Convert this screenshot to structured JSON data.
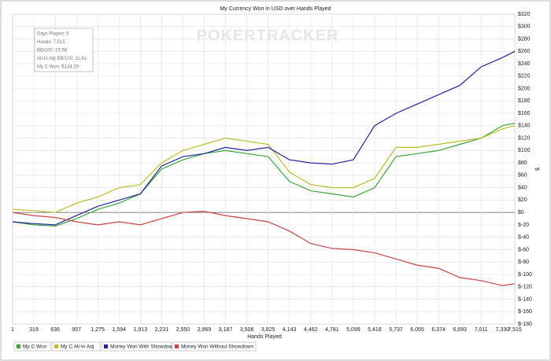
{
  "chart_data": {
    "type": "line",
    "title": "My Currency Won in USD over Hands Played",
    "watermark": "POKERTRACKER",
    "x_label": "Hands Played",
    "y_label": "$",
    "info": [
      "Days Played: 5",
      "Hands: 7,515",
      "BB/100: 15.56",
      "All-In Adj BB/100: 11.61",
      "My C Won: $144.29"
    ],
    "x": [
      1,
      319,
      638,
      957,
      1275,
      1594,
      1913,
      2231,
      2550,
      2869,
      3187,
      3506,
      3825,
      4143,
      4462,
      4781,
      5099,
      5418,
      5737,
      6055,
      6374,
      6693,
      7011,
      7330,
      7515
    ],
    "series": [
      {
        "name": "My C Won",
        "color": "#3aa63a",
        "values": [
          -15,
          -20,
          -22,
          -10,
          5,
          15,
          30,
          70,
          85,
          95,
          100,
          95,
          90,
          50,
          35,
          30,
          25,
          40,
          90,
          95,
          100,
          110,
          120,
          140,
          144
        ]
      },
      {
        "name": "My C All-In Adj",
        "color": "#bcbc2a",
        "values": [
          5,
          3,
          0,
          15,
          25,
          40,
          45,
          80,
          100,
          110,
          120,
          115,
          110,
          65,
          45,
          40,
          40,
          55,
          105,
          105,
          110,
          115,
          120,
          135,
          140
        ]
      },
      {
        "name": "Money Won With Showdown",
        "color": "#24249e",
        "values": [
          -15,
          -18,
          -20,
          -5,
          10,
          20,
          30,
          75,
          90,
          95,
          105,
          100,
          105,
          85,
          80,
          78,
          85,
          140,
          160,
          175,
          190,
          205,
          235,
          250,
          260
        ]
      },
      {
        "name": "Money Won Without Showdown",
        "color": "#c84444",
        "values": [
          0,
          -5,
          -8,
          -15,
          -20,
          -15,
          -20,
          -10,
          0,
          2,
          -5,
          -10,
          -15,
          -30,
          -50,
          -58,
          -60,
          -65,
          -75,
          -85,
          -90,
          -105,
          -110,
          -118,
          -115
        ]
      }
    ],
    "xlim": [
      1,
      7515
    ],
    "xticks": [
      1,
      319,
      638,
      957,
      {
        "value": 1275,
        "label": "1,275"
      },
      {
        "value": 1594,
        "label": "1,594"
      },
      {
        "value": 1913,
        "label": "1,913"
      },
      {
        "value": 2231,
        "label": "2,231"
      },
      {
        "value": 2550,
        "label": "2,550"
      },
      {
        "value": 2869,
        "label": "2,869"
      },
      {
        "value": 3187,
        "label": "3,187"
      },
      {
        "value": 3506,
        "label": "3,506"
      },
      {
        "value": 3825,
        "label": "3,825"
      },
      {
        "value": 4143,
        "label": "4,143"
      },
      {
        "value": 4462,
        "label": "4,462"
      },
      {
        "value": 4781,
        "label": "4,781"
      },
      {
        "value": 5099,
        "label": "5,099"
      },
      {
        "value": 5418,
        "label": "5,418"
      },
      {
        "value": 5737,
        "label": "5,737"
      },
      {
        "value": 6055,
        "label": "6,055"
      },
      {
        "value": 6374,
        "label": "6,374"
      },
      {
        "value": 6693,
        "label": "6,693"
      },
      {
        "value": 7011,
        "label": "7,011"
      },
      {
        "value": 7330,
        "label": "7,330"
      },
      {
        "value": 7515,
        "label": "7,515"
      }
    ],
    "ylim": [
      -180,
      320
    ],
    "yticks": [
      {
        "value": 320,
        "label": "$320"
      },
      {
        "value": 300,
        "label": "$300"
      },
      {
        "value": 280,
        "label": "$280"
      },
      {
        "value": 260,
        "label": "$260"
      },
      {
        "value": 240,
        "label": "$240"
      },
      {
        "value": 220,
        "label": "$220"
      },
      {
        "value": 200,
        "label": "$200"
      },
      {
        "value": 180,
        "label": "$180"
      },
      {
        "value": 160,
        "label": "$160"
      },
      {
        "value": 140,
        "label": "$140"
      },
      {
        "value": 120,
        "label": "$120"
      },
      {
        "value": 100,
        "label": "$100"
      },
      {
        "value": 80,
        "label": "$80"
      },
      {
        "value": 60,
        "label": "$60"
      },
      {
        "value": 40,
        "label": "$40"
      },
      {
        "value": 20,
        "label": "$20"
      },
      {
        "value": 0,
        "label": "$0"
      },
      {
        "value": -20,
        "label": "$-20"
      },
      {
        "value": -40,
        "label": "$-40"
      },
      {
        "value": -60,
        "label": "$-60"
      },
      {
        "value": -80,
        "label": "$-80"
      },
      {
        "value": -100,
        "label": "$-100"
      },
      {
        "value": -120,
        "label": "$-120"
      },
      {
        "value": -140,
        "label": "$-140"
      },
      {
        "value": -160,
        "label": "$-160"
      },
      {
        "value": -180,
        "label": "$-180"
      }
    ],
    "grid": true
  }
}
